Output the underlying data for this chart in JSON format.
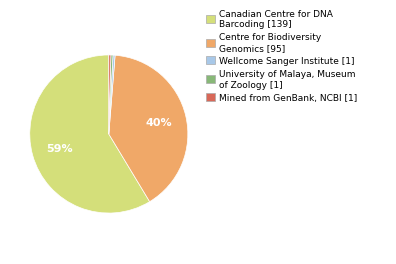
{
  "legend_labels": [
    "Canadian Centre for DNA\nBarcoding [139]",
    "Centre for Biodiversity\nGenomics [95]",
    "Wellcome Sanger Institute [1]",
    "University of Malaya, Museum\nof Zoology [1]",
    "Mined from GenBank, NCBI [1]"
  ],
  "values": [
    139,
    95,
    1,
    1,
    1
  ],
  "colors": [
    "#d4df7a",
    "#f0a868",
    "#a8c8e8",
    "#88b878",
    "#d86858"
  ],
  "background_color": "#ffffff",
  "pct_large_fontsize": 8,
  "pct_small_fontsize": 6,
  "legend_fontsize": 6.5,
  "startangle": 90
}
